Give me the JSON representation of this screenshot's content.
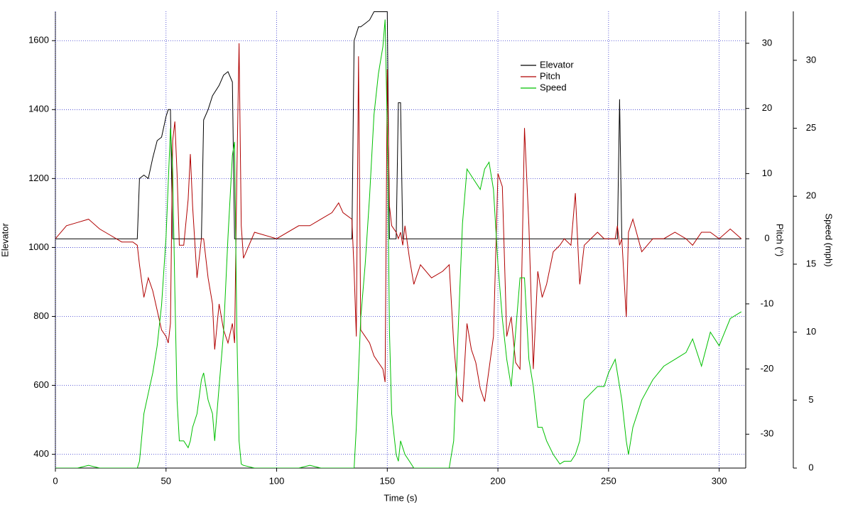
{
  "chart_data": {
    "type": "line",
    "x_label": "Time (s)",
    "y_label": "Elevator",
    "y2_label": "Pitch (°)",
    "y3_label": "Speed (mph)",
    "xlim": [
      0,
      312
    ],
    "xticks": [
      0,
      50,
      100,
      150,
      200,
      250,
      300
    ],
    "ylim": [
      360,
      1685
    ],
    "yticks": [
      400,
      600,
      800,
      1000,
      1200,
      1400,
      1600
    ],
    "y2lim": [
      -35.2,
      34.9
    ],
    "y2ticks": [
      -30,
      -20,
      -10,
      0,
      10,
      20,
      30
    ],
    "y3lim": [
      0,
      33.6
    ],
    "y3ticks": [
      0,
      5,
      10,
      15,
      20,
      25,
      30
    ],
    "grid": true,
    "grid_color": "#3333cc",
    "x": [
      0,
      5,
      10,
      15,
      20,
      25,
      30,
      35,
      37,
      38,
      40,
      42,
      44,
      46,
      48,
      50,
      51,
      52,
      53,
      54,
      55,
      56,
      58,
      60,
      61,
      62,
      64,
      66,
      67,
      69,
      71,
      72,
      74,
      76,
      78,
      80,
      81,
      82,
      83,
      84,
      85,
      90,
      100,
      110,
      115,
      120,
      125,
      128,
      130,
      134,
      135,
      136,
      137,
      138,
      140,
      142,
      144,
      146,
      148,
      149,
      150,
      151,
      152,
      154,
      155,
      156,
      157,
      158,
      160,
      162,
      165,
      170,
      175,
      178,
      180,
      182,
      184,
      186,
      188,
      190,
      192,
      194,
      196,
      198,
      200,
      202,
      204,
      206,
      208,
      210,
      212,
      214,
      216,
      218,
      220,
      222,
      225,
      228,
      230,
      233,
      235,
      237,
      239,
      242,
      245,
      248,
      250,
      253,
      254,
      255,
      256,
      258,
      259,
      261,
      265,
      270,
      275,
      280,
      285,
      288,
      292,
      296,
      300,
      305,
      310
    ],
    "series": [
      {
        "name": "Elevator",
        "color": "#000000",
        "axis": "y",
        "values": [
          1025,
          1025,
          1025,
          1025,
          1025,
          1025,
          1025,
          1025,
          1025,
          1200,
          1210,
          1200,
          1260,
          1310,
          1320,
          1380,
          1400,
          1400,
          1025,
          1025,
          1025,
          1025,
          1025,
          1025,
          1025,
          1025,
          1025,
          1025,
          1370,
          1400,
          1440,
          1450,
          1470,
          1500,
          1510,
          1480,
          1025,
          1025,
          1025,
          1025,
          1025,
          1025,
          1025,
          1025,
          1025,
          1025,
          1025,
          1025,
          1025,
          1025,
          1600,
          1620,
          1640,
          1640,
          1650,
          1660,
          1684,
          1684,
          1684,
          1684,
          1684,
          1025,
          1025,
          1025,
          1420,
          1420,
          1025,
          1025,
          1025,
          1025,
          1025,
          1025,
          1025,
          1025,
          1025,
          1025,
          1025,
          1025,
          1025,
          1025,
          1025,
          1025,
          1025,
          1025,
          1025,
          1025,
          1025,
          1025,
          1025,
          1025,
          1025,
          1025,
          1025,
          1025,
          1025,
          1025,
          1025,
          1025,
          1025,
          1025,
          1025,
          1025,
          1025,
          1025,
          1025,
          1025,
          1025,
          1025,
          1025,
          1430,
          1025,
          1025,
          1025,
          1025,
          1025,
          1025,
          1025,
          1025,
          1025,
          1025,
          1025,
          1025,
          1025,
          1025,
          1025
        ]
      },
      {
        "name": "Pitch",
        "color": "#b00000",
        "axis": "y2",
        "values": [
          0,
          2,
          2.5,
          3,
          1.5,
          0.5,
          -0.5,
          -0.5,
          -1,
          -4,
          -9,
          -6,
          -8,
          -11,
          -14,
          -15,
          -16,
          -13,
          15,
          18,
          10,
          -1,
          -1,
          6,
          13,
          5,
          -6,
          0,
          0,
          -6,
          -10,
          -17,
          -10,
          -14,
          -16,
          -13,
          -16,
          10,
          30,
          2,
          -3,
          1,
          0,
          2,
          2,
          3,
          4,
          5.5,
          4,
          3,
          -5,
          -15,
          28,
          -14,
          -15,
          -16,
          -18,
          -19,
          -20,
          -22,
          26,
          5,
          2,
          1,
          0,
          1,
          -1,
          2,
          -3,
          -7,
          -4,
          -6,
          -5,
          -4,
          -16,
          -24,
          -25,
          -13,
          -17,
          -19,
          -23,
          -25,
          -20,
          -15,
          10,
          8,
          -15,
          -12,
          -19,
          -20,
          17,
          2,
          -20,
          -5,
          -9,
          -7,
          -2,
          -1,
          0,
          -1,
          7,
          -7,
          -1,
          0,
          1,
          0,
          0,
          0,
          2,
          -1,
          0,
          -12,
          1,
          3,
          -2,
          0,
          0,
          1,
          0,
          -1,
          1,
          1,
          0,
          1.5,
          0
        ]
      },
      {
        "name": "Speed",
        "color": "#00c000",
        "axis": "y3",
        "values": [
          0,
          0,
          0,
          0.2,
          0,
          0,
          0,
          0,
          0,
          0.5,
          4,
          5.5,
          7,
          9,
          12,
          17,
          21,
          25,
          22,
          13,
          5,
          2,
          2,
          1.5,
          2,
          3,
          4,
          6.5,
          7,
          5,
          4,
          2,
          6,
          10,
          17,
          23,
          24,
          10,
          2,
          0.3,
          0.2,
          0,
          0,
          0,
          0.2,
          0,
          0,
          0,
          0,
          0,
          0,
          3,
          7,
          11,
          15,
          20,
          26,
          29,
          31,
          33,
          25,
          10,
          4,
          1,
          0.5,
          2,
          1.5,
          1,
          0.5,
          0,
          0,
          0,
          0,
          0,
          2,
          10,
          18,
          22,
          21.5,
          21,
          20.5,
          22,
          22.5,
          20.5,
          15,
          11,
          8,
          6,
          10,
          14,
          14,
          8,
          6,
          3,
          3,
          2,
          1,
          0.3,
          0.5,
          0.5,
          1,
          2,
          5,
          5.5,
          6,
          6,
          7,
          8,
          7,
          6,
          5,
          2,
          1,
          3,
          5,
          6.5,
          7.5,
          8,
          8.5,
          9.5,
          7.5,
          10,
          9,
          11,
          11.5
        ]
      }
    ]
  }
}
